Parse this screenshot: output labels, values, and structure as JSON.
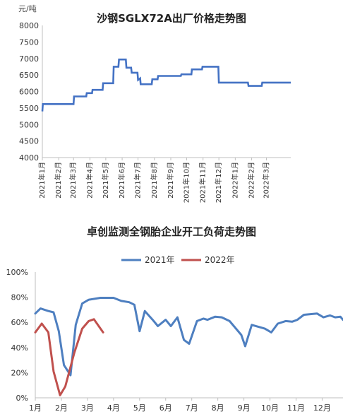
{
  "chart_data": [
    {
      "type": "line",
      "title": "沙钢SGLX72A出厂价格走势图",
      "ylabel": "元/吨",
      "ylim": [
        4000,
        8000
      ],
      "yticks": [
        "4000",
        "4500",
        "5000",
        "5500",
        "6000",
        "6500",
        "7000",
        "7500",
        "8000"
      ],
      "xlim": [
        "2021-01-01",
        "2022-04-16"
      ],
      "xticks": [
        {
          "date": "2021-01-01",
          "label": "2021年1月"
        },
        {
          "date": "2021-02-01",
          "label": "2021年2月"
        },
        {
          "date": "2021-03-01",
          "label": "2021年3月"
        },
        {
          "date": "2021-04-01",
          "label": "2021年4月"
        },
        {
          "date": "2021-05-01",
          "label": "2021年5月"
        },
        {
          "date": "2021-06-01",
          "label": "2021年6月"
        },
        {
          "date": "2021-07-01",
          "label": "2021年7月"
        },
        {
          "date": "2021-08-01",
          "label": "2021年8月"
        },
        {
          "date": "2021-09-01",
          "label": "2021年9月"
        },
        {
          "date": "2021-10-01",
          "label": "2021年10月"
        },
        {
          "date": "2021-11-01",
          "label": "2021年11月"
        },
        {
          "date": "2021-12-01",
          "label": "2021年12月"
        },
        {
          "date": "2022-01-01",
          "label": "2022年1月"
        },
        {
          "date": "2022-02-01",
          "label": "2022年2月"
        },
        {
          "date": "2022-03-01",
          "label": "2022年3月"
        }
      ],
      "grid": false,
      "color": "#4472c4",
      "points": [
        [
          "2021-01-01",
          5400
        ],
        [
          "2021-01-02",
          5620
        ],
        [
          "2021-03-01",
          5620
        ],
        [
          "2021-03-02",
          5850
        ],
        [
          "2021-03-25",
          5850
        ],
        [
          "2021-03-26",
          5950
        ],
        [
          "2021-04-05",
          5950
        ],
        [
          "2021-04-06",
          6050
        ],
        [
          "2021-04-25",
          6050
        ],
        [
          "2021-04-26",
          6250
        ],
        [
          "2021-05-15",
          6250
        ],
        [
          "2021-05-16",
          6750
        ],
        [
          "2021-05-25",
          6750
        ],
        [
          "2021-05-26",
          6970
        ],
        [
          "2021-06-08",
          6970
        ],
        [
          "2021-06-09",
          6720
        ],
        [
          "2021-06-18",
          6720
        ],
        [
          "2021-06-19",
          6570
        ],
        [
          "2021-06-30",
          6570
        ],
        [
          "2021-07-01",
          6350
        ],
        [
          "2021-07-05",
          6400
        ],
        [
          "2021-07-06",
          6220
        ],
        [
          "2021-07-27",
          6220
        ],
        [
          "2021-07-28",
          6370
        ],
        [
          "2021-08-07",
          6370
        ],
        [
          "2021-08-08",
          6470
        ],
        [
          "2021-09-20",
          6470
        ],
        [
          "2021-09-21",
          6520
        ],
        [
          "2021-10-10",
          6520
        ],
        [
          "2021-10-11",
          6670
        ],
        [
          "2021-10-30",
          6670
        ],
        [
          "2021-10-31",
          6750
        ],
        [
          "2021-11-30",
          6750
        ],
        [
          "2021-12-01",
          6270
        ],
        [
          "2022-01-25",
          6270
        ],
        [
          "2022-01-26",
          6170
        ],
        [
          "2022-02-20",
          6170
        ],
        [
          "2022-02-21",
          6270
        ],
        [
          "2022-04-16",
          6270
        ]
      ]
    },
    {
      "type": "line",
      "title": "卓创监测全钢胎企业开工负荷走势图",
      "ylim": [
        0,
        100
      ],
      "yticks": [
        "0%",
        "20%",
        "40%",
        "60%",
        "80%",
        "100%"
      ],
      "xticks": [
        "1月",
        "2月",
        "3月",
        "4月",
        "5月",
        "6月",
        "7月",
        "8月",
        "9月",
        "10月",
        "11月",
        "12月"
      ],
      "xlim": [
        1,
        12.8
      ],
      "grid": false,
      "legend": "top",
      "series": [
        {
          "name": "2021年",
          "color": "#4e7fc0",
          "points": [
            [
              1,
              67
            ],
            [
              1.2,
              71
            ],
            [
              1.5,
              69
            ],
            [
              1.7,
              68
            ],
            [
              1.9,
              53
            ],
            [
              2.1,
              26
            ],
            [
              2.35,
              18
            ],
            [
              2.55,
              58
            ],
            [
              2.8,
              75
            ],
            [
              3.05,
              78
            ],
            [
              3.5,
              79.5
            ],
            [
              4,
              79.5
            ],
            [
              4.3,
              77
            ],
            [
              4.6,
              76
            ],
            [
              4.8,
              74
            ],
            [
              5,
              53
            ],
            [
              5.2,
              69
            ],
            [
              5.5,
              62
            ],
            [
              5.7,
              57
            ],
            [
              6,
              62
            ],
            [
              6.2,
              57
            ],
            [
              6.45,
              64
            ],
            [
              6.7,
              46
            ],
            [
              6.9,
              43
            ],
            [
              7.2,
              61
            ],
            [
              7.45,
              63
            ],
            [
              7.6,
              62
            ],
            [
              7.9,
              64.5
            ],
            [
              8.15,
              64
            ],
            [
              8.45,
              61
            ],
            [
              8.9,
              50
            ],
            [
              9.05,
              41
            ],
            [
              9.3,
              58
            ],
            [
              9.8,
              55
            ],
            [
              10.05,
              52
            ],
            [
              10.3,
              59
            ],
            [
              10.6,
              61
            ],
            [
              10.85,
              60.5
            ],
            [
              11.05,
              62
            ],
            [
              11.3,
              66
            ],
            [
              11.8,
              67
            ],
            [
              12.05,
              64
            ],
            [
              12.3,
              65.5
            ],
            [
              12.5,
              64
            ],
            [
              12.7,
              64.5
            ],
            [
              12.8,
              62
            ]
          ]
        },
        {
          "name": "2022年",
          "color": "#c0504d",
          "points": [
            [
              1,
              52
            ],
            [
              1.25,
              59
            ],
            [
              1.5,
              52
            ],
            [
              1.7,
              21
            ],
            [
              1.95,
              2
            ],
            [
              2.15,
              9
            ],
            [
              2.5,
              36
            ],
            [
              2.8,
              55
            ],
            [
              3.05,
              61
            ],
            [
              3.25,
              62.5
            ],
            [
              3.6,
              52
            ]
          ]
        }
      ]
    }
  ]
}
